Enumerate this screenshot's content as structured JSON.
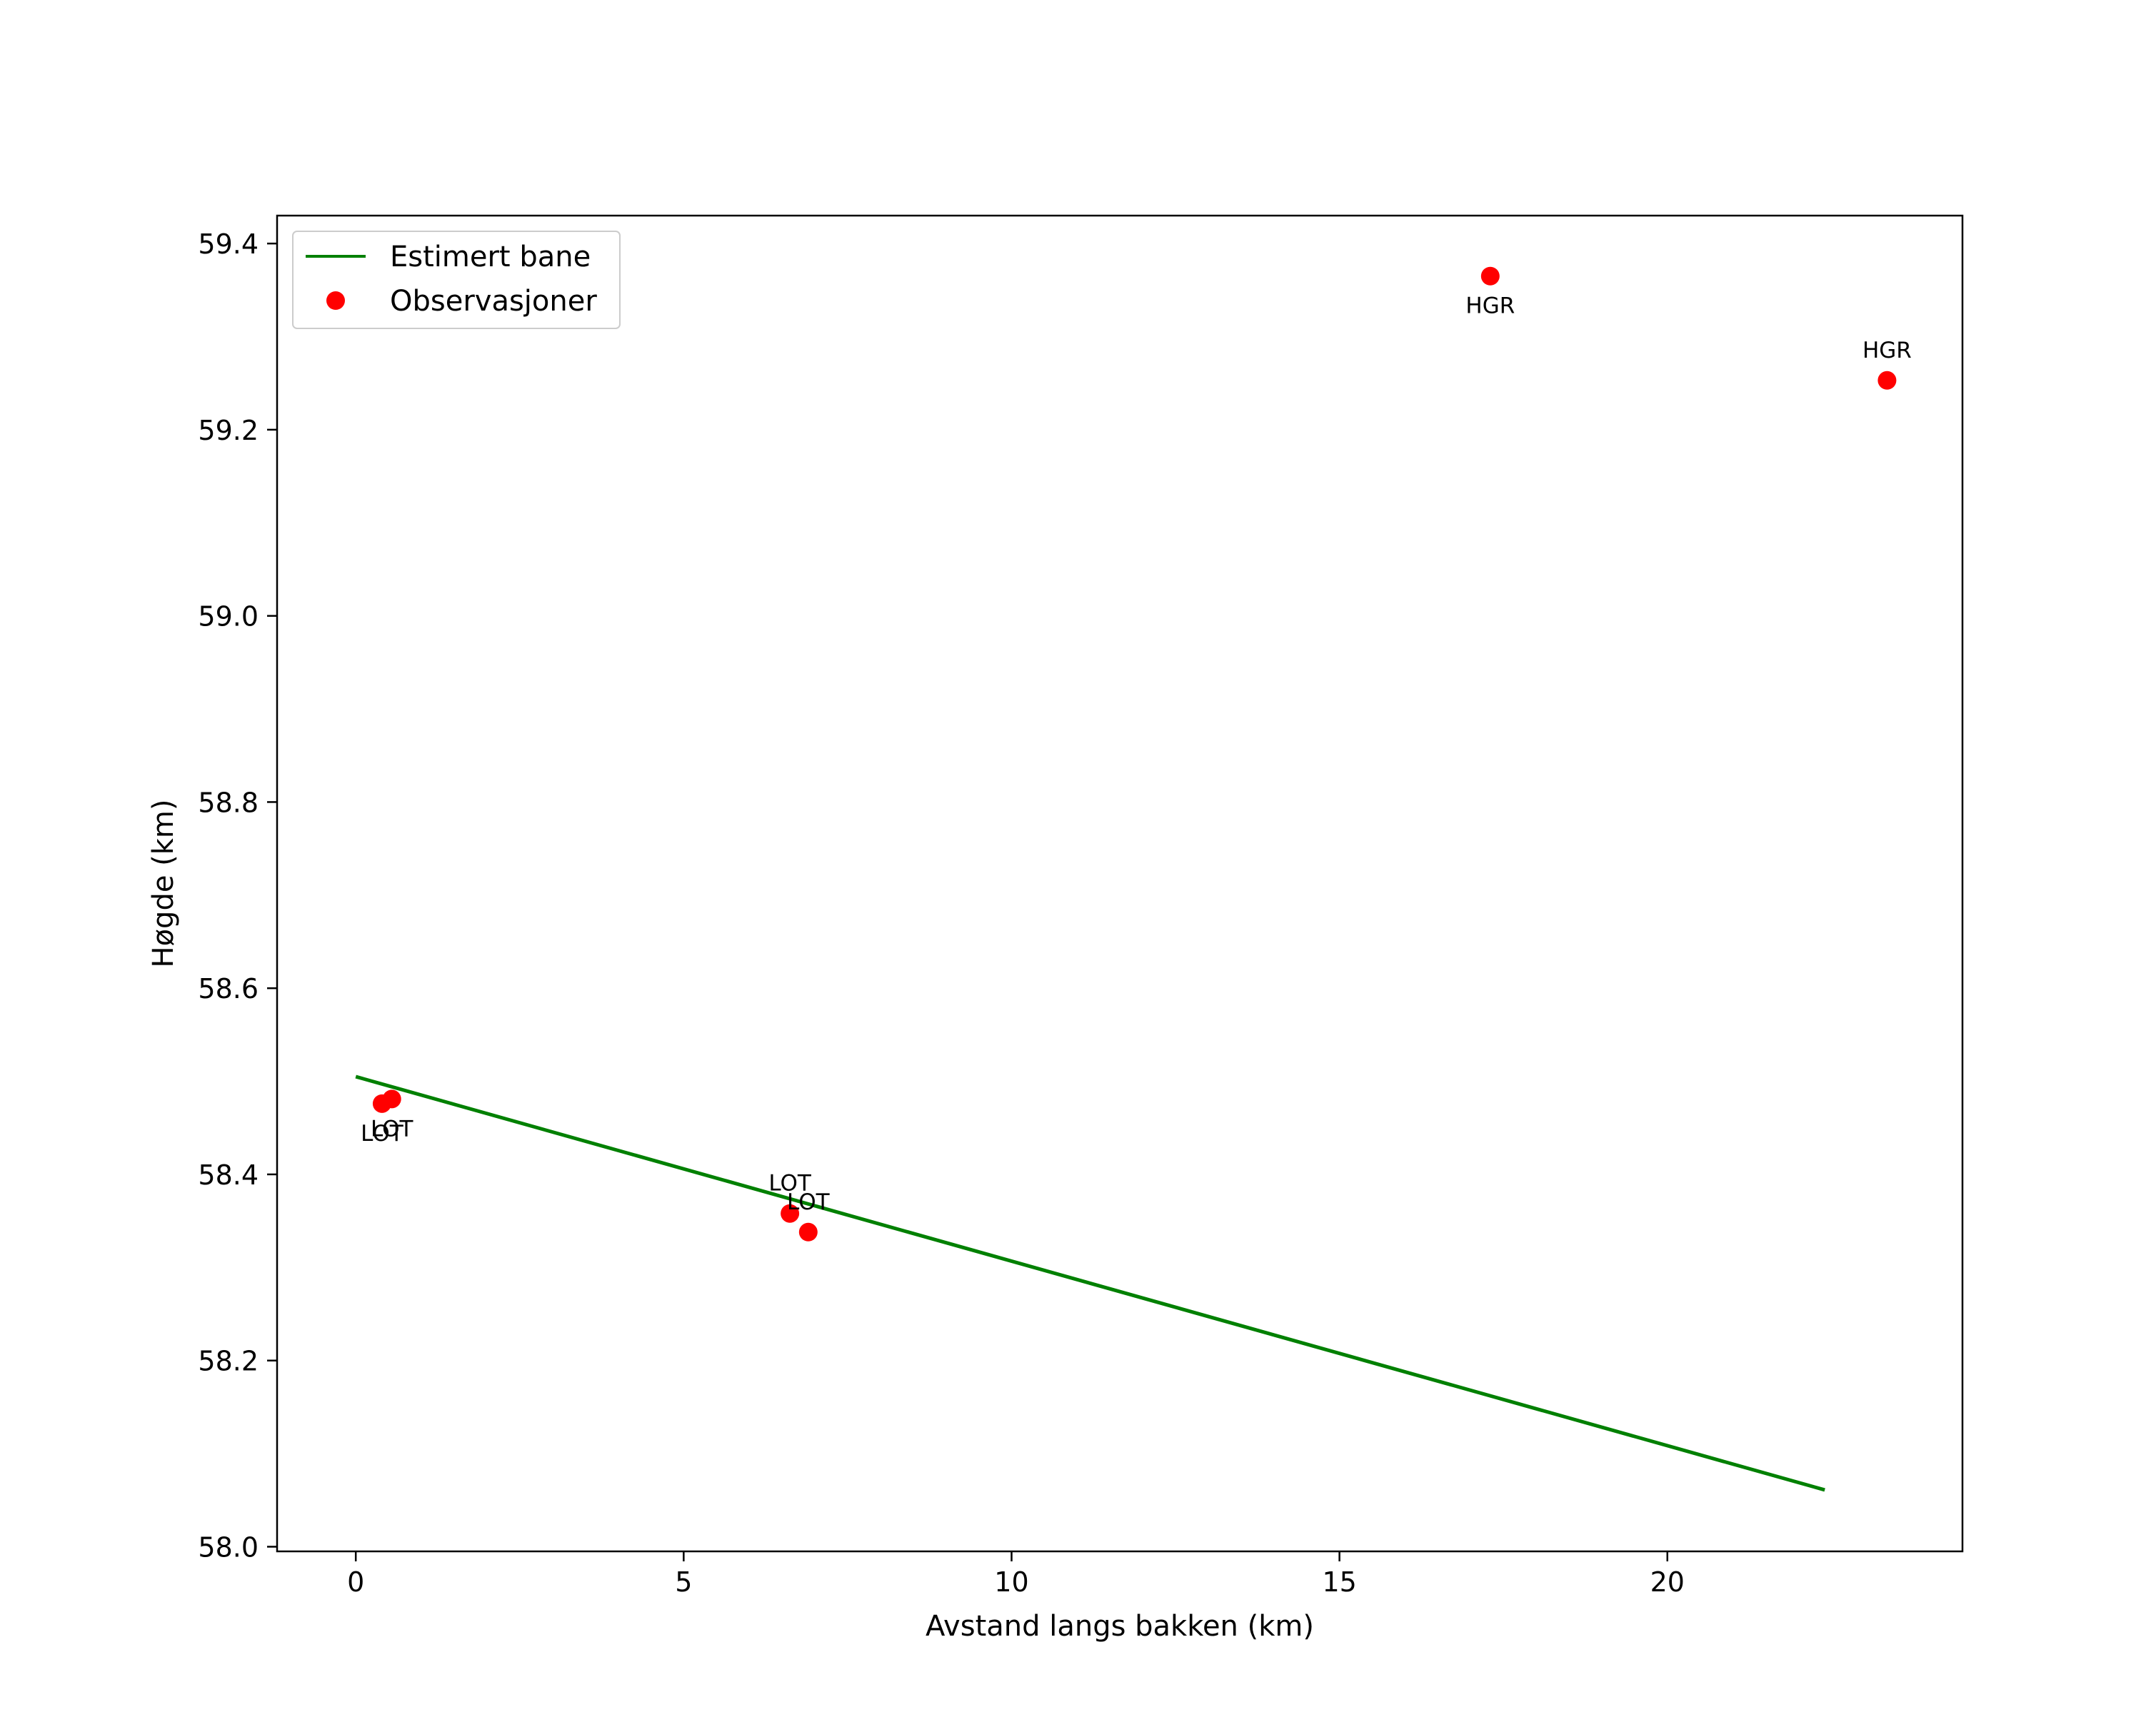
{
  "chart_data": {
    "type": "scatter",
    "xlabel": "Avstand langs bakken (km)",
    "ylabel": "Høgde (km)",
    "xlim": [
      -1.2,
      24.5
    ],
    "ylim": [
      57.995,
      59.43
    ],
    "x_ticks": [
      0,
      5,
      10,
      15,
      20
    ],
    "x_tick_labels": [
      "0",
      "5",
      "10",
      "15",
      "20"
    ],
    "y_ticks": [
      58.0,
      58.2,
      58.4,
      58.6,
      58.8,
      59.0,
      59.2,
      59.4
    ],
    "y_tick_labels": [
      "58.0",
      "58.2",
      "58.4",
      "58.6",
      "58.8",
      "59.0",
      "59.2",
      "59.4"
    ],
    "grid": false,
    "legend_position": "top-left",
    "legend": [
      {
        "label": "Estimert bane",
        "kind": "line",
        "color": "#008000"
      },
      {
        "label": "Observasjoner",
        "kind": "marker",
        "color": "#ff0000"
      }
    ],
    "series": [
      {
        "name": "Estimert bane",
        "kind": "line",
        "color": "#008000",
        "points": [
          {
            "x": 0.0,
            "y": 58.505
          },
          {
            "x": 22.4,
            "y": 58.061
          }
        ]
      },
      {
        "name": "Observasjoner",
        "kind": "scatter",
        "color": "#ff0000",
        "points": [
          {
            "x": 0.4,
            "y": 58.476,
            "label": "LOT",
            "label_pos": "below"
          },
          {
            "x": 0.55,
            "y": 58.481,
            "label": "LOT",
            "label_pos": "below"
          },
          {
            "x": 6.62,
            "y": 58.358,
            "label": "LOT",
            "label_pos": "above"
          },
          {
            "x": 6.9,
            "y": 58.338,
            "label": "LOT",
            "label_pos": "above"
          },
          {
            "x": 17.3,
            "y": 59.365,
            "label": "HGR",
            "label_pos": "below"
          },
          {
            "x": 23.35,
            "y": 59.253,
            "label": "HGR",
            "label_pos": "above"
          }
        ]
      }
    ]
  }
}
